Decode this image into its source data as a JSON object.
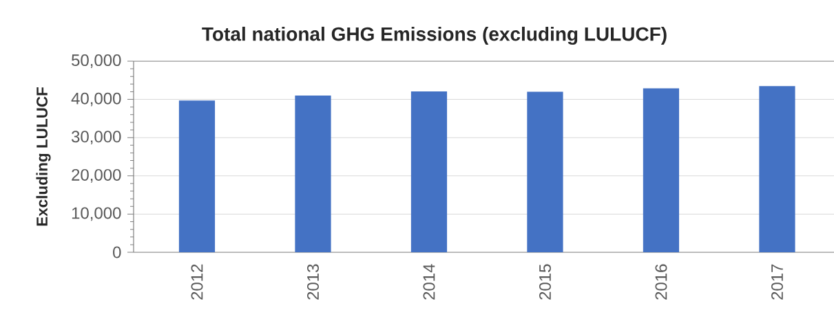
{
  "chart_data": {
    "type": "bar",
    "title": "Total national GHG Emissions (excluding LULUCF)",
    "ylabel": "Excluding LULUCF",
    "categories": [
      "2012",
      "2013",
      "2014",
      "2015",
      "2016",
      "2017"
    ],
    "values": [
      39700,
      41000,
      42100,
      42000,
      42900,
      43500
    ],
    "color": "#4472c4",
    "ylim": [
      0,
      50000
    ],
    "yticks": [
      0,
      {
        "value": 2000,
        "label": null
      },
      {
        "value": 4000,
        "label": null
      },
      {
        "value": 6000,
        "label": null
      },
      {
        "value": 8000,
        "label": null
      },
      {
        "value": 10000,
        "label": "10,000"
      },
      {
        "value": 12000,
        "label": null
      },
      {
        "value": 14000,
        "label": null
      },
      {
        "value": 16000,
        "label": null
      },
      {
        "value": 18000,
        "label": null
      },
      {
        "value": 20000,
        "label": "20,000"
      },
      {
        "value": 22000,
        "label": null
      },
      {
        "value": 24000,
        "label": null
      },
      {
        "value": 26000,
        "label": null
      },
      {
        "value": 28000,
        "label": null
      },
      {
        "value": 30000,
        "label": "30,000"
      },
      {
        "value": 32000,
        "label": null
      },
      {
        "value": 34000,
        "label": null
      },
      {
        "value": 36000,
        "label": null
      },
      {
        "value": 38000,
        "label": null
      },
      {
        "value": 40000,
        "label": "40,000"
      },
      {
        "value": 42000,
        "label": null
      },
      {
        "value": 44000,
        "label": null
      },
      {
        "value": 46000,
        "label": null
      },
      {
        "value": 48000,
        "label": null
      },
      {
        "value": 50000,
        "label": "50,000"
      }
    ],
    "grid": "y"
  }
}
